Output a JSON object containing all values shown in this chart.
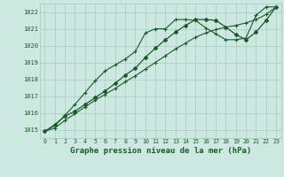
{
  "bg_color": "#cce8e0",
  "grid_color": "#a8ccc4",
  "line_color": "#1a5c2a",
  "xlabel": "Graphe pression niveau de la mer (hPa)",
  "ylim": [
    1014.5,
    1022.5
  ],
  "xlim": [
    -0.5,
    23.5
  ],
  "yticks": [
    1015,
    1016,
    1017,
    1018,
    1019,
    1020,
    1021,
    1022
  ],
  "xticks": [
    0,
    1,
    2,
    3,
    4,
    5,
    6,
    7,
    8,
    9,
    10,
    11,
    12,
    13,
    14,
    15,
    16,
    17,
    18,
    19,
    20,
    21,
    22,
    23
  ],
  "s1_x": [
    0,
    1,
    2,
    3,
    4,
    5,
    6,
    7,
    8,
    9,
    10,
    11,
    12,
    13,
    14,
    15,
    16,
    17,
    18,
    19,
    20,
    21,
    22,
    23
  ],
  "s1_y": [
    1014.9,
    1015.3,
    1015.8,
    1016.1,
    1016.5,
    1016.9,
    1017.3,
    1017.75,
    1018.25,
    1018.65,
    1019.3,
    1019.85,
    1020.35,
    1020.8,
    1021.2,
    1021.55,
    1021.55,
    1021.5,
    1021.1,
    1020.65,
    1020.35,
    1020.8,
    1021.5,
    1022.3
  ],
  "s2_x": [
    0,
    1,
    2,
    3,
    4,
    5,
    6,
    7,
    8,
    9,
    10,
    11,
    12,
    13,
    14,
    15,
    16,
    17,
    18,
    19,
    20,
    21,
    22,
    23
  ],
  "s2_y": [
    1014.9,
    1015.1,
    1015.55,
    1015.95,
    1016.35,
    1016.75,
    1017.1,
    1017.45,
    1017.85,
    1018.2,
    1018.6,
    1019.0,
    1019.4,
    1019.8,
    1020.15,
    1020.5,
    1020.75,
    1020.95,
    1021.1,
    1021.2,
    1021.35,
    1021.55,
    1021.85,
    1022.3
  ],
  "s3_x": [
    0,
    1,
    2,
    3,
    4,
    5,
    6,
    7,
    8,
    9,
    10,
    11,
    12,
    13,
    14,
    15,
    16,
    17,
    18,
    19,
    20,
    21,
    22,
    23
  ],
  "s3_y": [
    1014.9,
    1015.25,
    1015.85,
    1016.5,
    1017.2,
    1017.9,
    1018.5,
    1018.85,
    1019.2,
    1019.65,
    1020.75,
    1021.0,
    1021.0,
    1021.55,
    1021.55,
    1021.5,
    1021.05,
    1020.7,
    1020.35,
    1020.35,
    1020.45,
    1021.8,
    1022.3,
    1022.3
  ]
}
